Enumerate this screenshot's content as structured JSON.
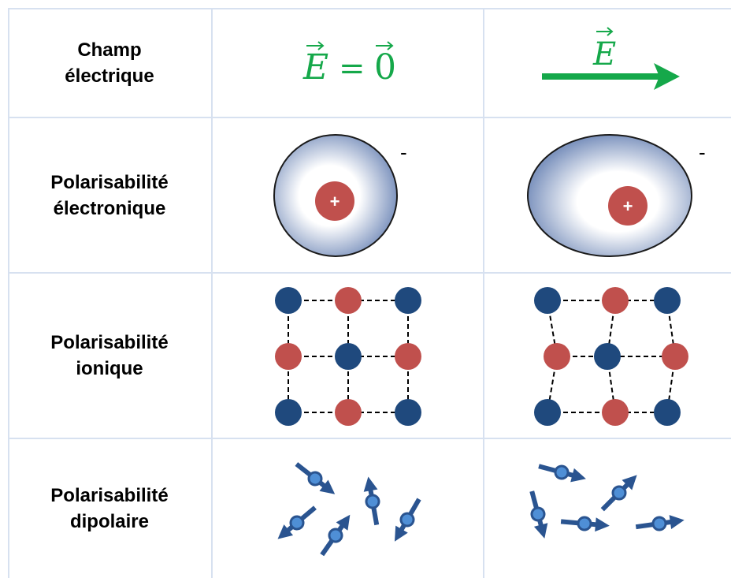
{
  "rows": [
    {
      "label_line1": "Champ",
      "label_line2": "électrique"
    },
    {
      "label_line1": "Polarisabilité",
      "label_line2": "électronique"
    },
    {
      "label_line1": "Polarisabilité",
      "label_line2": "ionique"
    },
    {
      "label_line1": "Polarisabilité",
      "label_line2": "dipolaire"
    }
  ],
  "field": {
    "zero_field_label": "E = 0",
    "field_label": "E",
    "field_color": "#15a84a"
  },
  "electronic": {
    "nucleus_sign": "+",
    "electron_sign": "-",
    "nucleus_color": "#c0504d",
    "cloud_edge_color": "#7f95bf"
  },
  "ionic": {
    "ion_blue": "#1f497d",
    "ion_red": "#c0504d"
  },
  "dipolar": {
    "dipole_color": "#2a5490",
    "dipole_center_color": "#4f8fd6"
  },
  "colors": {
    "grid_line": "#d7e1f0",
    "label_text": "#000000"
  }
}
